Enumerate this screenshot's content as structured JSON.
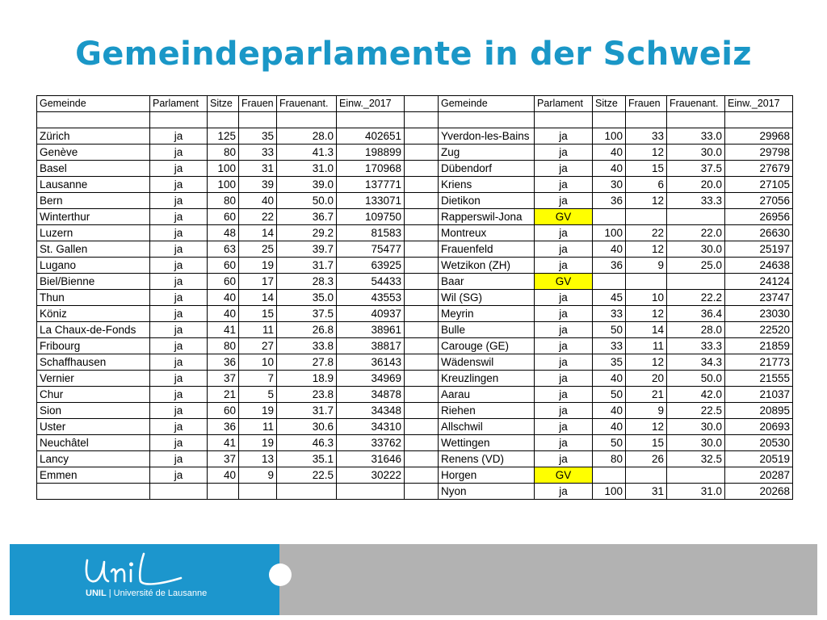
{
  "title": "Gemeindeparlamente in der Schweiz",
  "columns": [
    "Gemeinde",
    "Parlament",
    "Sitze",
    "Frauen",
    "Frauenant.",
    "Einw._2017"
  ],
  "left_rows": [
    [
      "Zürich",
      "ja",
      "125",
      "35",
      "28.0",
      "402651"
    ],
    [
      "Genève",
      "ja",
      "80",
      "33",
      "41.3",
      "198899"
    ],
    [
      "Basel",
      "ja",
      "100",
      "31",
      "31.0",
      "170968"
    ],
    [
      "Lausanne",
      "ja",
      "100",
      "39",
      "39.0",
      "137771"
    ],
    [
      "Bern",
      "ja",
      "80",
      "40",
      "50.0",
      "133071"
    ],
    [
      "Winterthur",
      "ja",
      "60",
      "22",
      "36.7",
      "109750"
    ],
    [
      "Luzern",
      "ja",
      "48",
      "14",
      "29.2",
      "81583"
    ],
    [
      "St. Gallen",
      "ja",
      "63",
      "25",
      "39.7",
      "75477"
    ],
    [
      "Lugano",
      "ja",
      "60",
      "19",
      "31.7",
      "63925"
    ],
    [
      "Biel/Bienne",
      "ja",
      "60",
      "17",
      "28.3",
      "54433"
    ],
    [
      "Thun",
      "ja",
      "40",
      "14",
      "35.0",
      "43553"
    ],
    [
      "Köniz",
      "ja",
      "40",
      "15",
      "37.5",
      "40937"
    ],
    [
      "La Chaux-de-Fonds",
      "ja",
      "41",
      "11",
      "26.8",
      "38961"
    ],
    [
      "Fribourg",
      "ja",
      "80",
      "27",
      "33.8",
      "38817"
    ],
    [
      "Schaffhausen",
      "ja",
      "36",
      "10",
      "27.8",
      "36143"
    ],
    [
      "Vernier",
      "ja",
      "37",
      "7",
      "18.9",
      "34969"
    ],
    [
      "Chur",
      "ja",
      "21",
      "5",
      "23.8",
      "34878"
    ],
    [
      "Sion",
      "ja",
      "60",
      "19",
      "31.7",
      "34348"
    ],
    [
      "Uster",
      "ja",
      "36",
      "11",
      "30.6",
      "34310"
    ],
    [
      "Neuchâtel",
      "ja",
      "41",
      "19",
      "46.3",
      "33762"
    ],
    [
      "Lancy",
      "ja",
      "37",
      "13",
      "35.1",
      "31646"
    ],
    [
      "Emmen",
      "ja",
      "40",
      "9",
      "22.5",
      "30222"
    ],
    [
      "",
      "",
      "",
      "",
      "",
      ""
    ]
  ],
  "right_rows": [
    [
      "Yverdon-les-Bains",
      "ja",
      "100",
      "33",
      "33.0",
      "29968"
    ],
    [
      "Zug",
      "ja",
      "40",
      "12",
      "30.0",
      "29798"
    ],
    [
      "Dübendorf",
      "ja",
      "40",
      "15",
      "37.5",
      "27679"
    ],
    [
      "Kriens",
      "ja",
      "30",
      "6",
      "20.0",
      "27105"
    ],
    [
      "Dietikon",
      "ja",
      "36",
      "12",
      "33.3",
      "27056"
    ],
    [
      "Rapperswil-Jona",
      "GV",
      "",
      "",
      "",
      "26956"
    ],
    [
      "Montreux",
      "ja",
      "100",
      "22",
      "22.0",
      "26630"
    ],
    [
      "Frauenfeld",
      "ja",
      "40",
      "12",
      "30.0",
      "25197"
    ],
    [
      "Wetzikon (ZH)",
      "ja",
      "36",
      "9",
      "25.0",
      "24638"
    ],
    [
      "Baar",
      "GV",
      "",
      "",
      "",
      "24124"
    ],
    [
      "Wil (SG)",
      "ja",
      "45",
      "10",
      "22.2",
      "23747"
    ],
    [
      "Meyrin",
      "ja",
      "33",
      "12",
      "36.4",
      "23030"
    ],
    [
      "Bulle",
      "ja",
      "50",
      "14",
      "28.0",
      "22520"
    ],
    [
      "Carouge (GE)",
      "ja",
      "33",
      "11",
      "33.3",
      "21859"
    ],
    [
      "Wädenswil",
      "ja",
      "35",
      "12",
      "34.3",
      "21773"
    ],
    [
      "Kreuzlingen",
      "ja",
      "40",
      "20",
      "50.0",
      "21555"
    ],
    [
      "Aarau",
      "ja",
      "50",
      "21",
      "42.0",
      "21037"
    ],
    [
      "Riehen",
      "ja",
      "40",
      "9",
      "22.5",
      "20895"
    ],
    [
      "Allschwil",
      "ja",
      "40",
      "12",
      "30.0",
      "20693"
    ],
    [
      "Wettingen",
      "ja",
      "50",
      "15",
      "30.0",
      "20530"
    ],
    [
      "Renens (VD)",
      "ja",
      "80",
      "26",
      "32.5",
      "20519"
    ],
    [
      "Horgen",
      "GV",
      "",
      "",
      "",
      "20287"
    ],
    [
      "Nyon",
      "ja",
      "100",
      "31",
      "31.0",
      "20268"
    ]
  ],
  "highlight_color": "#ffff00",
  "footer": {
    "logo_script": "Unil",
    "logo_brand": "UNIL",
    "logo_separator": "|",
    "logo_name": "Université de Lausanne",
    "left_color": "#1c96cd",
    "right_color": "#b2b2b2"
  }
}
